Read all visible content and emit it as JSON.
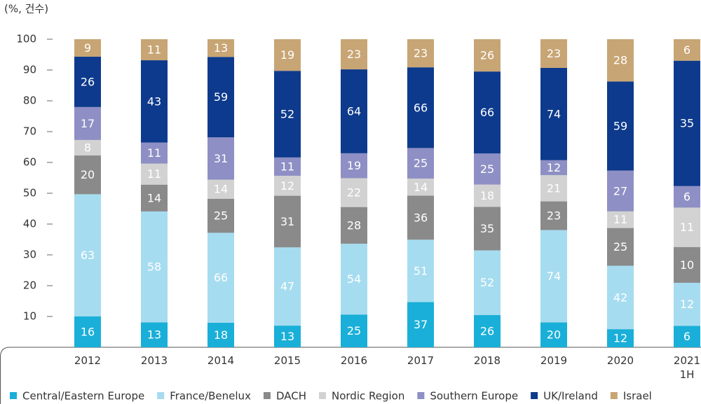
{
  "chart_data": {
    "type": "bar",
    "stacked": "percent",
    "y_unit_label": "(%, 건수)",
    "categories": [
      "2012",
      "2013",
      "2014",
      "2015",
      "2016",
      "2017",
      "2018",
      "2019",
      "2020",
      "2021\n1H"
    ],
    "series": [
      {
        "name": "Central/Eastern Europe",
        "color": "#1aafd8",
        "values": [
          16,
          13,
          18,
          13,
          25,
          37,
          26,
          20,
          12,
          6
        ]
      },
      {
        "name": "France/Benelux",
        "color": "#a6dcf0",
        "values": [
          63,
          58,
          66,
          47,
          54,
          51,
          52,
          74,
          42,
          12
        ]
      },
      {
        "name": "DACH",
        "color": "#8a8a8a",
        "values": [
          20,
          14,
          25,
          31,
          28,
          36,
          35,
          23,
          25,
          10
        ]
      },
      {
        "name": "Nordic Region",
        "color": "#d2d2d2",
        "values": [
          8,
          11,
          14,
          12,
          22,
          14,
          18,
          21,
          11,
          11
        ]
      },
      {
        "name": "Southern Europe",
        "color": "#8e8fc4",
        "values": [
          17,
          11,
          31,
          11,
          19,
          25,
          25,
          12,
          27,
          6
        ]
      },
      {
        "name": "UK/Ireland",
        "color": "#0d3a8c",
        "values": [
          26,
          43,
          59,
          52,
          64,
          66,
          66,
          74,
          59,
          35
        ]
      },
      {
        "name": "Israel",
        "color": "#c8a574",
        "values": [
          9,
          11,
          13,
          19,
          23,
          23,
          26,
          23,
          28,
          6
        ]
      }
    ],
    "ylim": [
      0,
      100
    ],
    "yticks": [
      10,
      20,
      30,
      40,
      50,
      60,
      70,
      80,
      90,
      100
    ],
    "legend": "bottom"
  }
}
